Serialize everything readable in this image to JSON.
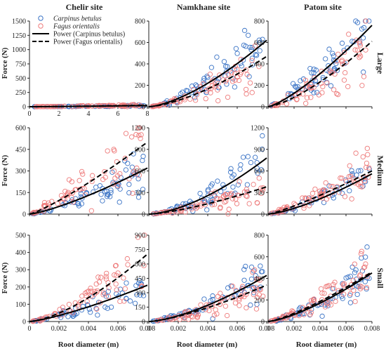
{
  "colors": {
    "carpinus": "#3b74c6",
    "fagus": "#ee7b7b",
    "axis": "#222222",
    "fit": "#000000"
  },
  "figure": {
    "column_titles": [
      "Chelir site",
      "Namkhane site",
      "Patom site"
    ],
    "row_labels": [
      "Large",
      "Medium",
      "Small"
    ],
    "ylabel": "Force (N)",
    "xlabel": "Root diameter (m)"
  },
  "legend": {
    "entries": [
      {
        "label": "Carpinus betulus",
        "kind": "marker",
        "series": "carpinus",
        "italic": true
      },
      {
        "label": "Fagus orientalis",
        "kind": "marker",
        "series": "fagus",
        "italic": true
      },
      {
        "label": "Power (Carpinus betulus)",
        "kind": "line",
        "dash": false,
        "italic": false
      },
      {
        "label": "Power (Fagus orientalis)",
        "kind": "line",
        "dash": true,
        "italic": false
      }
    ]
  },
  "chart_data": [
    {
      "row": 0,
      "col": 0,
      "type": "scatter",
      "xlim": [
        0,
        8
      ],
      "ylim": [
        0,
        1500
      ],
      "xticks": [
        "0",
        "2",
        "4",
        "6",
        "8"
      ],
      "yticks": [
        "0",
        "250",
        "500",
        "750",
        "1000",
        "1250",
        "1500"
      ],
      "series": [
        {
          "name": "Carpinus betulus",
          "n": 60,
          "xrange": [
            0.3,
            7.8
          ],
          "fit": {
            "a": 21,
            "b": 1.35
          },
          "spread": 0.4
        },
        {
          "name": "Fagus orientalis",
          "n": 75,
          "xrange": [
            0.3,
            7.8
          ],
          "fit": {
            "a": 25,
            "b": 1.3
          },
          "spread": 0.45
        }
      ],
      "fits": [
        {
          "name": "Power (Carpinus betulus)",
          "a": 21,
          "b": 1.35
        },
        {
          "name": "Power (Fagus orientalis)",
          "a": 25,
          "b": 1.3
        }
      ]
    },
    {
      "row": 0,
      "col": 1,
      "type": "scatter",
      "xlim": [
        0,
        0.008
      ],
      "ylim": [
        0,
        800
      ],
      "xticks": [],
      "yticks": [
        "0",
        "200",
        "400",
        "600",
        "800"
      ],
      "series": [
        {
          "name": "Carpinus betulus",
          "n": 75,
          "xrange": [
            0.0002,
            0.0078
          ],
          "fit": {
            "a": 620,
            "b": 1.5
          },
          "spread": 0.3
        },
        {
          "name": "Fagus orientalis",
          "n": 75,
          "xrange": [
            0.0002,
            0.0078
          ],
          "fit": {
            "a": 470,
            "b": 1.5
          },
          "spread": 0.32
        }
      ],
      "fits": [
        {
          "name": "Power (Carpinus betulus)",
          "a": 620,
          "b": 1.5
        },
        {
          "name": "Power (Fagus orientalis)",
          "a": 470,
          "b": 1.5
        }
      ]
    },
    {
      "row": 0,
      "col": 2,
      "type": "scatter",
      "xlim": [
        0,
        0.008
      ],
      "ylim": [
        0,
        800
      ],
      "xticks": [],
      "yticks": [
        "0",
        "200",
        "400",
        "600",
        "800"
      ],
      "series": [
        {
          "name": "Carpinus betulus",
          "n": 65,
          "xrange": [
            0.0002,
            0.0078
          ],
          "fit": {
            "a": 760,
            "b": 1.3
          },
          "spread": 0.25
        },
        {
          "name": "Fagus orientalis",
          "n": 70,
          "xrange": [
            0.0002,
            0.0078
          ],
          "fit": {
            "a": 610,
            "b": 1.4
          },
          "spread": 0.3
        }
      ],
      "fits": [
        {
          "name": "Power (Carpinus betulus)",
          "a": 760,
          "b": 1.3
        },
        {
          "name": "Power (Fagus orientalis)",
          "a": 610,
          "b": 1.4
        }
      ]
    },
    {
      "row": 1,
      "col": 0,
      "type": "scatter",
      "xlim": [
        0,
        0.008
      ],
      "ylim": [
        0,
        600
      ],
      "xticks": [],
      "yticks": [
        "0",
        "150",
        "300",
        "450",
        "600"
      ],
      "series": [
        {
          "name": "Carpinus betulus",
          "n": 70,
          "xrange": [
            0.0002,
            0.0078
          ],
          "fit": {
            "a": 320,
            "b": 1.3
          },
          "spread": 0.3
        },
        {
          "name": "Fagus orientalis",
          "n": 75,
          "xrange": [
            0.0002,
            0.0078
          ],
          "fit": {
            "a": 500,
            "b": 1.2
          },
          "spread": 0.3
        }
      ],
      "fits": [
        {
          "name": "Power (Carpinus betulus)",
          "a": 320,
          "b": 1.3
        },
        {
          "name": "Power (Fagus orientalis)",
          "a": 500,
          "b": 1.2
        }
      ]
    },
    {
      "row": 1,
      "col": 1,
      "type": "scatter",
      "xlim": [
        0,
        0.008
      ],
      "ylim": [
        0,
        1200
      ],
      "xticks": [],
      "yticks": [
        "0",
        "300",
        "600",
        "900",
        "1200"
      ],
      "series": [
        {
          "name": "Carpinus betulus",
          "n": 75,
          "xrange": [
            0.0002,
            0.0078
          ],
          "fit": {
            "a": 780,
            "b": 1.6
          },
          "spread": 0.3
        },
        {
          "name": "Fagus orientalis",
          "n": 75,
          "xrange": [
            0.0002,
            0.0078
          ],
          "fit": {
            "a": 380,
            "b": 1.4
          },
          "spread": 0.3
        }
      ],
      "fits": [
        {
          "name": "Power (Carpinus betulus)",
          "a": 780,
          "b": 1.6
        },
        {
          "name": "Power (Fagus orientalis)",
          "a": 380,
          "b": 1.4
        }
      ]
    },
    {
      "row": 1,
      "col": 2,
      "type": "scatter",
      "xlim": [
        0,
        0.008
      ],
      "ylim": [
        0,
        1200
      ],
      "xticks": [],
      "yticks": [
        "0",
        "300",
        "600",
        "900",
        "1200"
      ],
      "series": [
        {
          "name": "Carpinus betulus",
          "n": 45,
          "xrange": [
            0.0002,
            0.0078
          ],
          "fit": {
            "a": 560,
            "b": 1.4
          },
          "spread": 0.25
        },
        {
          "name": "Fagus orientalis",
          "n": 80,
          "xrange": [
            0.0002,
            0.0078
          ],
          "fit": {
            "a": 600,
            "b": 1.2
          },
          "spread": 0.3
        }
      ],
      "fits": [
        {
          "name": "Power (Carpinus betulus)",
          "a": 560,
          "b": 1.4
        },
        {
          "name": "Power (Fagus orientalis)",
          "a": 600,
          "b": 1.2
        }
      ]
    },
    {
      "row": 2,
      "col": 0,
      "type": "scatter",
      "xlim": [
        0,
        0.008
      ],
      "ylim": [
        0,
        500
      ],
      "xticks": [
        "0",
        "0.002",
        "0.004",
        "0.006",
        "0.008"
      ],
      "yticks": [
        "0",
        "100",
        "200",
        "300",
        "400",
        "500"
      ],
      "series": [
        {
          "name": "Carpinus betulus",
          "n": 65,
          "xrange": [
            0.0002,
            0.0078
          ],
          "fit": {
            "a": 210,
            "b": 1.3
          },
          "spread": 0.3
        },
        {
          "name": "Fagus orientalis",
          "n": 75,
          "xrange": [
            0.0002,
            0.0078
          ],
          "fit": {
            "a": 390,
            "b": 1.5
          },
          "spread": 0.3
        }
      ],
      "fits": [
        {
          "name": "Power (Carpinus betulus)",
          "a": 210,
          "b": 1.3
        },
        {
          "name": "Power (Fagus orientalis)",
          "a": 390,
          "b": 1.5
        }
      ]
    },
    {
      "row": 2,
      "col": 1,
      "type": "scatter",
      "xlim": [
        0,
        0.008
      ],
      "ylim": [
        0,
        900
      ],
      "xticks": [
        "0",
        "0.002",
        "0.004",
        "0.006",
        "0.008"
      ],
      "yticks": [
        "0",
        "150",
        "300",
        "450",
        "600",
        "750",
        "900"
      ],
      "series": [
        {
          "name": "Carpinus betulus",
          "n": 75,
          "xrange": [
            0.0002,
            0.0078
          ],
          "fit": {
            "a": 480,
            "b": 1.5
          },
          "spread": 0.3
        },
        {
          "name": "Fagus orientalis",
          "n": 80,
          "xrange": [
            0.0002,
            0.0078
          ],
          "fit": {
            "a": 380,
            "b": 1.4
          },
          "spread": 0.32
        }
      ],
      "fits": [
        {
          "name": "Power (Carpinus betulus)",
          "a": 480,
          "b": 1.5
        },
        {
          "name": "Power (Fagus orientalis)",
          "a": 380,
          "b": 1.4
        }
      ]
    },
    {
      "row": 2,
      "col": 2,
      "type": "scatter",
      "xlim": [
        0,
        0.008
      ],
      "ylim": [
        0,
        800
      ],
      "xticks": [
        "0",
        "0.002",
        "0.004",
        "0.006",
        "0.008"
      ],
      "yticks": [
        "0",
        "200",
        "400",
        "600",
        "800"
      ],
      "series": [
        {
          "name": "Carpinus betulus",
          "n": 75,
          "xrange": [
            0.0002,
            0.0078
          ],
          "fit": {
            "a": 450,
            "b": 1.4
          },
          "spread": 0.3
        },
        {
          "name": "Fagus orientalis",
          "n": 80,
          "xrange": [
            0.0002,
            0.0078
          ],
          "fit": {
            "a": 460,
            "b": 1.3
          },
          "spread": 0.28
        }
      ],
      "fits": [
        {
          "name": "Power (Carpinus betulus)",
          "a": 450,
          "b": 1.4
        },
        {
          "name": "Power (Fagus orientalis)",
          "a": 460,
          "b": 1.3
        }
      ]
    }
  ]
}
